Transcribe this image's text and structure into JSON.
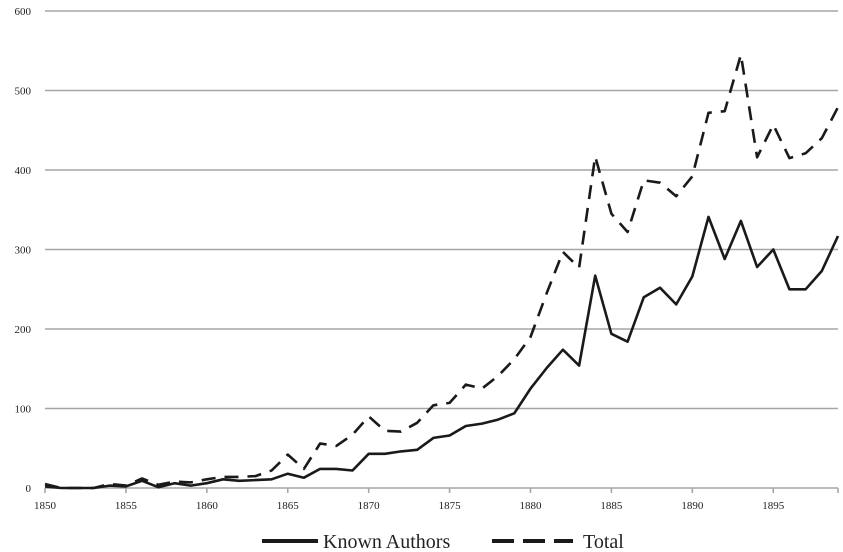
{
  "chart_data": {
    "type": "line",
    "x": [
      1850,
      1851,
      1852,
      1853,
      1854,
      1855,
      1856,
      1857,
      1858,
      1859,
      1860,
      1861,
      1862,
      1863,
      1864,
      1865,
      1866,
      1867,
      1868,
      1869,
      1870,
      1871,
      1872,
      1873,
      1874,
      1875,
      1876,
      1877,
      1878,
      1879,
      1880,
      1881,
      1882,
      1883,
      1884,
      1885,
      1886,
      1887,
      1888,
      1889,
      1890,
      1891,
      1892,
      1893,
      1894,
      1895,
      1896,
      1897,
      1898,
      1899
    ],
    "series": [
      {
        "name": "Known Authors",
        "style": "solid",
        "values": [
          2,
          0,
          0,
          0,
          3,
          2,
          9,
          1,
          6,
          3,
          6,
          11,
          9,
          10,
          11,
          18,
          13,
          24,
          24,
          22,
          43,
          43,
          46,
          48,
          63,
          66,
          78,
          81,
          86,
          94,
          125,
          151,
          174,
          154,
          267,
          194,
          184,
          240,
          252,
          231,
          266,
          341,
          288,
          336,
          278,
          300,
          250,
          250,
          273,
          317
        ]
      },
      {
        "name": "Total",
        "style": "dashed",
        "values": [
          5,
          0,
          0,
          0,
          5,
          3,
          12,
          4,
          8,
          7,
          11,
          14,
          14,
          15,
          22,
          42,
          24,
          56,
          53,
          67,
          90,
          72,
          71,
          82,
          104,
          107,
          130,
          125,
          141,
          162,
          190,
          245,
          297,
          277,
          417,
          345,
          322,
          387,
          384,
          367,
          392,
          472,
          474,
          545,
          416,
          457,
          415,
          421,
          440,
          479
        ]
      }
    ],
    "xlim": [
      1850,
      1899
    ],
    "ylim": [
      0,
      600
    ],
    "xticks": [
      1850,
      1855,
      1860,
      1865,
      1870,
      1875,
      1880,
      1885,
      1890,
      1895
    ],
    "yticks": [
      0,
      100,
      200,
      300,
      400,
      500,
      600
    ],
    "grid": "horizontal",
    "legend_position": "bottom"
  }
}
